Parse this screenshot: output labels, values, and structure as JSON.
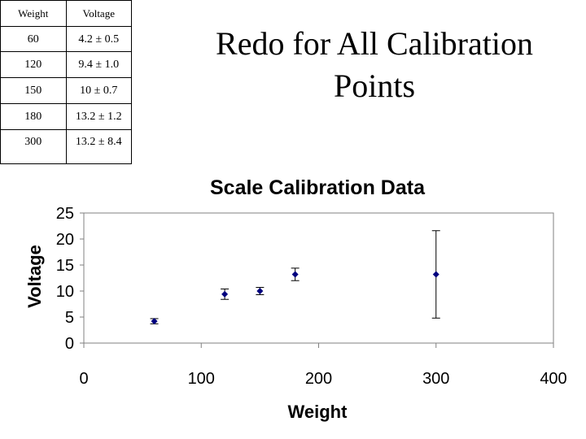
{
  "table": {
    "headers": [
      "Weight",
      "Voltage"
    ],
    "rows": [
      [
        "60",
        "4.2 ± 0.5"
      ],
      [
        "120",
        "9.4 ± 1.0"
      ],
      [
        "150",
        "10 ± 0.7"
      ],
      [
        "180",
        "13.2 ± 1.2"
      ],
      [
        "300",
        "13.2 ± 8.4"
      ]
    ]
  },
  "slide": {
    "title_line1": "Redo for All Calibration",
    "title_line2": "Points"
  },
  "chart_data": {
    "type": "scatter",
    "title": "Scale Calibration Data",
    "xlabel": "Weight",
    "ylabel": "Voltage",
    "xlim": [
      0,
      400
    ],
    "ylim": [
      0,
      25
    ],
    "xticks": [
      0,
      100,
      200,
      300,
      400
    ],
    "yticks": [
      0,
      5,
      10,
      15,
      20,
      25
    ],
    "grid": false,
    "marker_color": "#00007f",
    "points": [
      {
        "x": 60,
        "y": 4.2,
        "err": 0.5
      },
      {
        "x": 120,
        "y": 9.4,
        "err": 1.0
      },
      {
        "x": 150,
        "y": 10,
        "err": 0.7
      },
      {
        "x": 180,
        "y": 13.2,
        "err": 1.2
      },
      {
        "x": 300,
        "y": 13.2,
        "err": 8.4
      }
    ]
  }
}
